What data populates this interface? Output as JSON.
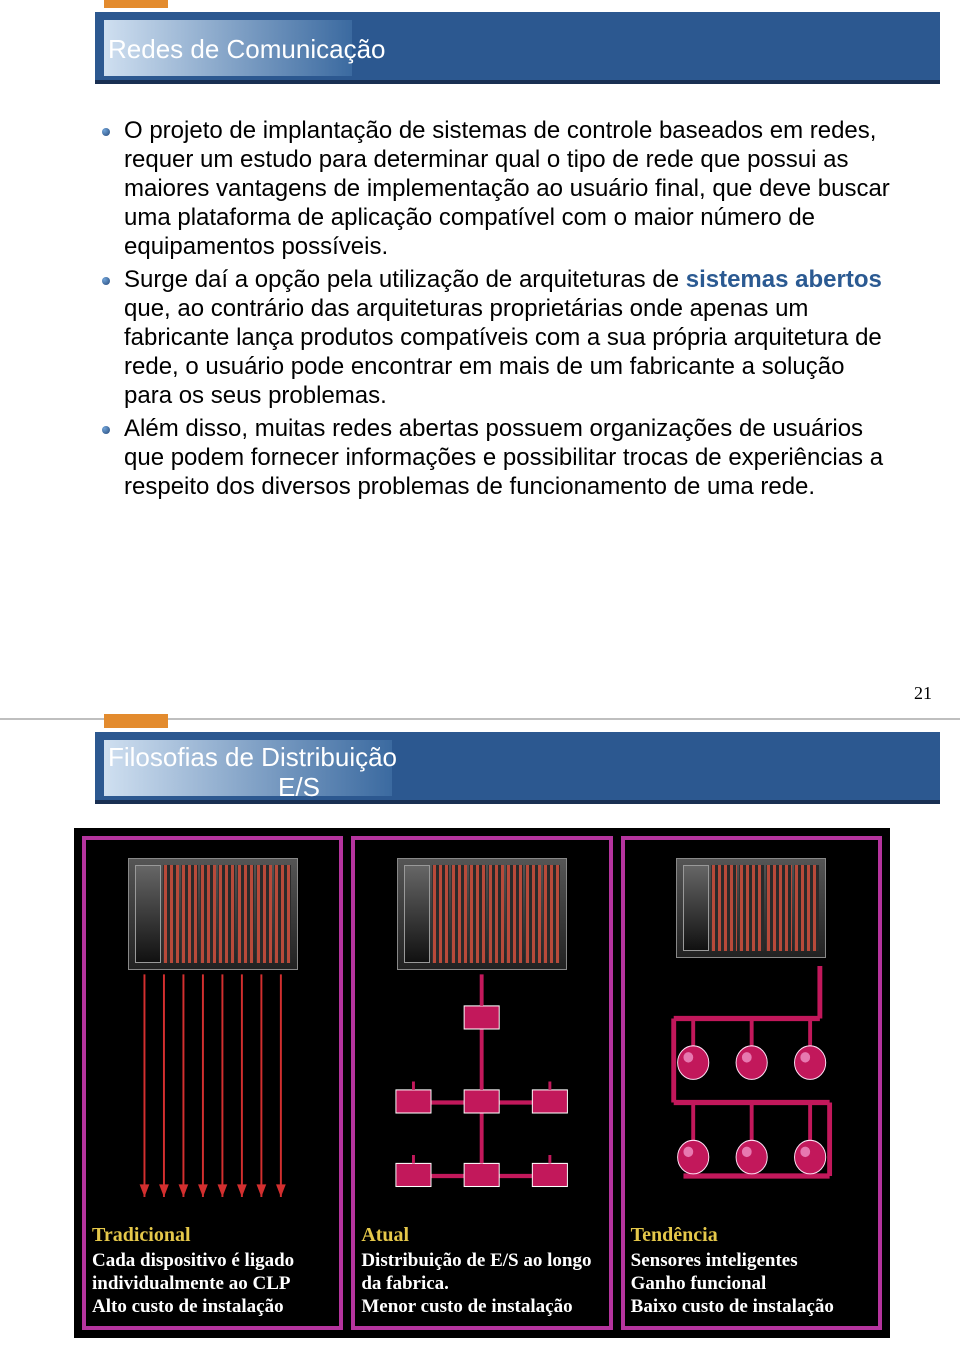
{
  "slide1": {
    "title": "Redes de Comunicação",
    "bullets": [
      {
        "text": "O projeto de implantação de sistemas de controle baseados em redes, requer um estudo para determinar qual o tipo de rede que possui as maiores vantagens de implementação ao usuário final, que deve buscar uma plataforma de aplicação compatível com o maior número de equipamentos possíveis.",
        "highlight": null
      },
      {
        "prefix": "Surge daí a opção pela utilização de arquiteturas de ",
        "highlight": "sistemas abertos",
        "suffix": " que, ao contrário das arquiteturas proprietárias onde apenas um fabricante lança produtos compatíveis com a sua própria arquitetura de rede, o usuário pode encontrar em mais de um fabricante a solução para os seus problemas."
      },
      {
        "text": "Além disso, muitas redes abertas possuem organizações de usuários que podem fornecer informações e possibilitar trocas de experiências a respeito dos diversos problemas de funcionamento de uma rede.",
        "highlight": null
      }
    ],
    "page_number": "21"
  },
  "slide2": {
    "title_line1": "Filosofias de Distribuição",
    "title_line2": "E/S",
    "panels": [
      {
        "id": "tradicional",
        "border_color": "#b5349e",
        "title_color": "#e5c84a",
        "title": "Tradicional",
        "desc": "Cada dispositivo é ligado individualmente ao CLP\nAlto custo de instalação",
        "type": "direct_wiring",
        "wire_color": "#d32f2f",
        "wire_count": 8
      },
      {
        "id": "atual",
        "border_color": "#b5349e",
        "title_color": "#e5c84a",
        "title": "Atual",
        "desc": "Distribuição de E/S ao longo da fabrica.\nMenor custo de instalação",
        "type": "remote_io",
        "node_color": "#c2185b",
        "bus_color": "#c2185b",
        "rows": [
          1,
          3,
          3
        ]
      },
      {
        "id": "tendencia",
        "border_color": "#b5349e",
        "title_color": "#e5c84a",
        "title": "Tendência",
        "desc": "Sensores inteligentes\nGanho funcional\nBaixo custo de instalação",
        "type": "smart_sensors",
        "node_color": "#c2185b",
        "bus_color": "#c2185b",
        "sensor_rows": [
          3,
          3
        ]
      }
    ]
  },
  "colors": {
    "header_bg": "#2c5890",
    "header_border": "#192f52",
    "accent_orange": "#e38b2e",
    "highlight_text": "#2b5a92",
    "diagram_bg": "#000000"
  }
}
